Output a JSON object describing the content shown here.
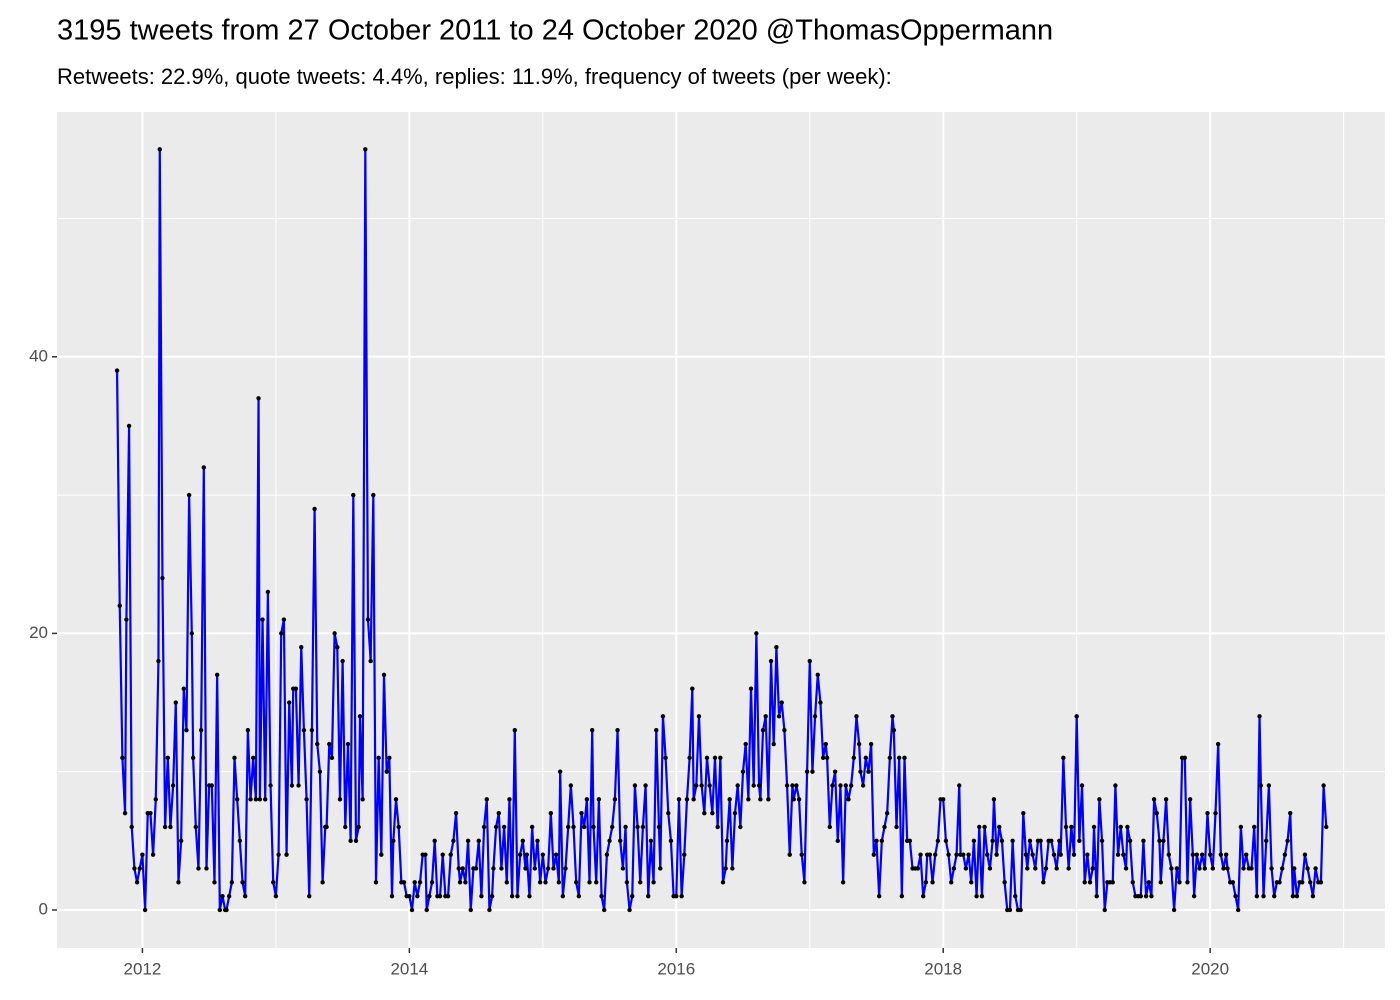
{
  "chart_data": {
    "type": "line",
    "title": "3195 tweets from 27 October 2011 to 24 October 2020 @ThomasOppermann",
    "subtitle": "Retweets: 22.9%, quote tweets: 4.4%, replies: 11.9%, frequency of tweets (per week):",
    "line_color": "#0000ff",
    "point_color": "#000000",
    "grid": true,
    "xlim": [
      2011.36,
      2021.31
    ],
    "ylim": [
      -2.75,
      57.7
    ],
    "xticks": [
      2012,
      2014,
      2016,
      2018,
      2020
    ],
    "minor_xticks": [
      2013,
      2015,
      2017,
      2019,
      2021
    ],
    "yticks": [
      0,
      20,
      40
    ],
    "minor_yticks": [
      10,
      30,
      50
    ],
    "x": [
      2011.81,
      2011.83,
      2011.85,
      2011.87,
      2011.88,
      2011.9,
      2011.92,
      2011.94,
      2011.96,
      2011.98,
      2012,
      2012.02,
      2012.04,
      2012.06,
      2012.08,
      2012.1,
      2012.12,
      2012.13,
      2012.15,
      2012.17,
      2012.19,
      2012.21,
      2012.23,
      2012.25,
      2012.27,
      2012.29,
      2012.31,
      2012.33,
      2012.35,
      2012.37,
      2012.38,
      2012.4,
      2012.42,
      2012.44,
      2012.46,
      2012.48,
      2012.5,
      2012.52,
      2012.54,
      2012.56,
      2012.58,
      2012.6,
      2012.62,
      2012.63,
      2012.65,
      2012.67,
      2012.69,
      2012.71,
      2012.73,
      2012.75,
      2012.77,
      2012.79,
      2012.81,
      2012.83,
      2012.85,
      2012.87,
      2012.88,
      2012.9,
      2012.92,
      2012.94,
      2012.96,
      2012.98,
      2013,
      2013.02,
      2013.04,
      2013.06,
      2013.08,
      2013.1,
      2013.12,
      2013.13,
      2013.15,
      2013.17,
      2013.19,
      2013.21,
      2013.23,
      2013.25,
      2013.27,
      2013.29,
      2013.31,
      2013.33,
      2013.35,
      2013.37,
      2013.38,
      2013.4,
      2013.42,
      2013.44,
      2013.46,
      2013.48,
      2013.5,
      2013.52,
      2013.54,
      2013.56,
      2013.58,
      2013.6,
      2013.62,
      2013.63,
      2013.65,
      2013.67,
      2013.69,
      2013.71,
      2013.73,
      2013.75,
      2013.77,
      2013.79,
      2013.81,
      2013.83,
      2013.85,
      2013.87,
      2013.88,
      2013.9,
      2013.92,
      2013.94,
      2013.96,
      2013.98,
      2014,
      2014.02,
      2014.04,
      2014.06,
      2014.08,
      2014.1,
      2014.12,
      2014.13,
      2014.15,
      2014.17,
      2014.19,
      2014.21,
      2014.23,
      2014.25,
      2014.27,
      2014.29,
      2014.31,
      2014.33,
      2014.35,
      2014.37,
      2014.38,
      2014.4,
      2014.42,
      2014.44,
      2014.46,
      2014.48,
      2014.5,
      2014.52,
      2014.54,
      2014.56,
      2014.58,
      2014.6,
      2014.62,
      2014.63,
      2014.65,
      2014.67,
      2014.69,
      2014.71,
      2014.73,
      2014.75,
      2014.77,
      2014.79,
      2014.81,
      2014.83,
      2014.85,
      2014.87,
      2014.88,
      2014.9,
      2014.92,
      2014.94,
      2014.96,
      2014.98,
      2015,
      2015.02,
      2015.04,
      2015.06,
      2015.08,
      2015.1,
      2015.12,
      2015.13,
      2015.15,
      2015.17,
      2015.19,
      2015.21,
      2015.23,
      2015.25,
      2015.27,
      2015.29,
      2015.31,
      2015.33,
      2015.35,
      2015.37,
      2015.38,
      2015.4,
      2015.42,
      2015.44,
      2015.46,
      2015.48,
      2015.5,
      2015.52,
      2015.54,
      2015.56,
      2015.58,
      2015.6,
      2015.62,
      2015.63,
      2015.65,
      2015.67,
      2015.69,
      2015.71,
      2015.73,
      2015.75,
      2015.77,
      2015.79,
      2015.81,
      2015.83,
      2015.85,
      2015.87,
      2015.88,
      2015.9,
      2015.92,
      2015.94,
      2015.96,
      2015.98,
      2016,
      2016.02,
      2016.04,
      2016.06,
      2016.08,
      2016.1,
      2016.12,
      2016.13,
      2016.15,
      2016.17,
      2016.19,
      2016.21,
      2016.23,
      2016.25,
      2016.27,
      2016.29,
      2016.31,
      2016.33,
      2016.35,
      2016.37,
      2016.38,
      2016.4,
      2016.42,
      2016.44,
      2016.46,
      2016.48,
      2016.5,
      2016.52,
      2016.54,
      2016.56,
      2016.58,
      2016.6,
      2016.62,
      2016.63,
      2016.65,
      2016.67,
      2016.69,
      2016.71,
      2016.73,
      2016.75,
      2016.77,
      2016.79,
      2016.81,
      2016.83,
      2016.85,
      2016.87,
      2016.88,
      2016.9,
      2016.92,
      2016.94,
      2016.96,
      2016.98,
      2017,
      2017.02,
      2017.04,
      2017.06,
      2017.08,
      2017.1,
      2017.12,
      2017.13,
      2017.15,
      2017.17,
      2017.19,
      2017.21,
      2017.23,
      2017.25,
      2017.27,
      2017.29,
      2017.31,
      2017.33,
      2017.35,
      2017.37,
      2017.38,
      2017.4,
      2017.42,
      2017.44,
      2017.46,
      2017.48,
      2017.5,
      2017.52,
      2017.54,
      2017.56,
      2017.58,
      2017.6,
      2017.62,
      2017.63,
      2017.65,
      2017.67,
      2017.69,
      2017.71,
      2017.73,
      2017.75,
      2017.77,
      2017.79,
      2017.81,
      2017.83,
      2017.85,
      2017.87,
      2017.88,
      2017.9,
      2017.92,
      2017.94,
      2017.96,
      2017.98,
      2018,
      2018.02,
      2018.04,
      2018.06,
      2018.08,
      2018.1,
      2018.12,
      2018.13,
      2018.15,
      2018.17,
      2018.19,
      2018.21,
      2018.23,
      2018.25,
      2018.27,
      2018.29,
      2018.31,
      2018.33,
      2018.35,
      2018.37,
      2018.38,
      2018.4,
      2018.42,
      2018.44,
      2018.46,
      2018.48,
      2018.5,
      2018.52,
      2018.54,
      2018.56,
      2018.58,
      2018.6,
      2018.62,
      2018.63,
      2018.65,
      2018.67,
      2018.69,
      2018.71,
      2018.73,
      2018.75,
      2018.77,
      2018.79,
      2018.81,
      2018.83,
      2018.85,
      2018.87,
      2018.88,
      2018.9,
      2018.92,
      2018.94,
      2018.96,
      2018.98,
      2019,
      2019.02,
      2019.04,
      2019.06,
      2019.08,
      2019.1,
      2019.12,
      2019.13,
      2019.15,
      2019.17,
      2019.19,
      2019.21,
      2019.23,
      2019.25,
      2019.27,
      2019.29,
      2019.31,
      2019.33,
      2019.35,
      2019.37,
      2019.38,
      2019.4,
      2019.42,
      2019.44,
      2019.46,
      2019.48,
      2019.5,
      2019.52,
      2019.54,
      2019.56,
      2019.58,
      2019.6,
      2019.62,
      2019.63,
      2019.65,
      2019.67,
      2019.69,
      2019.71,
      2019.73,
      2019.75,
      2019.77,
      2019.79,
      2019.81,
      2019.83,
      2019.85,
      2019.87,
      2019.88,
      2019.9,
      2019.92,
      2019.94,
      2019.96,
      2019.98,
      2020,
      2020.02,
      2020.04,
      2020.06,
      2020.08,
      2020.1,
      2020.12,
      2020.13,
      2020.15,
      2020.17,
      2020.19,
      2020.21,
      2020.23,
      2020.25,
      2020.27,
      2020.29,
      2020.31,
      2020.33,
      2020.35,
      2020.37,
      2020.38,
      2020.4,
      2020.42,
      2020.44,
      2020.46,
      2020.48,
      2020.5,
      2020.52,
      2020.54,
      2020.56,
      2020.58,
      2020.6,
      2020.62,
      2020.63,
      2020.65,
      2020.67,
      2020.69,
      2020.71,
      2020.73,
      2020.75,
      2020.77,
      2020.79,
      2020.81,
      2020.83,
      2020.85,
      2020.87
    ],
    "values": [
      39,
      22,
      11,
      7,
      21,
      35,
      6,
      3,
      2,
      3,
      4,
      0,
      7,
      7,
      4,
      8,
      18,
      55,
      24,
      6,
      11,
      6,
      9,
      15,
      2,
      5,
      16,
      13,
      30,
      20,
      11,
      6,
      3,
      13,
      32,
      3,
      9,
      9,
      2,
      17,
      0,
      1,
      0,
      0,
      1,
      2,
      11,
      8,
      5,
      2,
      1,
      13,
      8,
      11,
      8,
      37,
      8,
      21,
      8,
      23,
      9,
      2,
      1,
      4,
      20,
      21,
      4,
      15,
      9,
      16,
      16,
      9,
      19,
      13,
      8,
      1,
      13,
      29,
      12,
      10,
      2,
      6,
      6,
      12,
      11,
      20,
      19,
      8,
      18,
      6,
      12,
      5,
      30,
      5,
      6,
      14,
      8,
      55,
      21,
      18,
      30,
      2,
      11,
      4,
      17,
      10,
      11,
      1,
      5,
      8,
      6,
      2,
      2,
      1,
      1,
      0,
      2,
      1,
      2,
      4,
      4,
      0,
      1,
      2,
      5,
      1,
      1,
      4,
      1,
      1,
      4,
      5,
      7,
      3,
      2,
      3,
      2,
      5,
      0,
      3,
      3,
      5,
      1,
      6,
      8,
      0,
      1,
      3,
      6,
      7,
      3,
      6,
      2,
      8,
      1,
      13,
      1,
      4,
      5,
      3,
      4,
      1,
      6,
      3,
      5,
      2,
      4,
      2,
      3,
      7,
      3,
      4,
      2,
      10,
      1,
      3,
      6,
      9,
      6,
      2,
      1,
      7,
      6,
      8,
      2,
      13,
      6,
      2,
      8,
      1,
      0,
      4,
      5,
      6,
      8,
      13,
      5,
      3,
      6,
      2,
      0,
      1,
      9,
      6,
      2,
      6,
      9,
      1,
      5,
      2,
      13,
      6,
      3,
      14,
      11,
      7,
      5,
      1,
      1,
      8,
      1,
      4,
      8,
      11,
      16,
      8,
      9,
      14,
      9,
      7,
      11,
      9,
      7,
      11,
      6,
      11,
      2,
      3,
      5,
      8,
      3,
      7,
      9,
      6,
      10,
      12,
      8,
      16,
      9,
      20,
      9,
      8,
      13,
      14,
      8,
      18,
      12,
      19,
      14,
      15,
      13,
      9,
      4,
      9,
      8,
      9,
      8,
      4,
      2,
      10,
      18,
      10,
      14,
      17,
      15,
      11,
      12,
      11,
      6,
      9,
      10,
      5,
      9,
      2,
      9,
      8,
      9,
      11,
      14,
      12,
      10,
      9,
      11,
      10,
      12,
      4,
      5,
      1,
      5,
      6,
      7,
      11,
      14,
      13,
      6,
      11,
      1,
      11,
      5,
      5,
      3,
      3,
      3,
      4,
      1,
      2,
      4,
      4,
      2,
      4,
      5,
      8,
      8,
      5,
      4,
      2,
      3,
      4,
      9,
      4,
      4,
      3,
      4,
      2,
      5,
      1,
      6,
      1,
      6,
      4,
      3,
      5,
      8,
      4,
      6,
      5,
      2,
      0,
      0,
      5,
      1,
      0,
      0,
      7,
      4,
      3,
      5,
      4,
      3,
      5,
      5,
      2,
      3,
      5,
      5,
      4,
      3,
      5,
      4,
      11,
      6,
      3,
      6,
      4,
      14,
      5,
      9,
      2,
      4,
      2,
      3,
      6,
      1,
      8,
      5,
      0,
      2,
      2,
      2,
      9,
      4,
      6,
      4,
      3,
      6,
      5,
      2,
      1,
      1,
      1,
      5,
      1,
      2,
      1,
      8,
      7,
      5,
      2,
      5,
      8,
      4,
      3,
      0,
      3,
      2,
      11,
      11,
      2,
      8,
      4,
      1,
      4,
      3,
      4,
      3,
      7,
      4,
      3,
      7,
      12,
      4,
      3,
      4,
      3,
      2,
      2,
      1,
      0,
      6,
      3,
      4,
      3,
      3,
      6,
      1,
      14,
      9,
      1,
      5,
      9,
      3,
      1,
      2,
      2,
      3,
      4,
      5,
      7,
      1,
      3,
      1,
      2,
      2,
      4,
      3,
      2,
      1,
      3,
      2,
      2,
      9,
      6
    ]
  }
}
